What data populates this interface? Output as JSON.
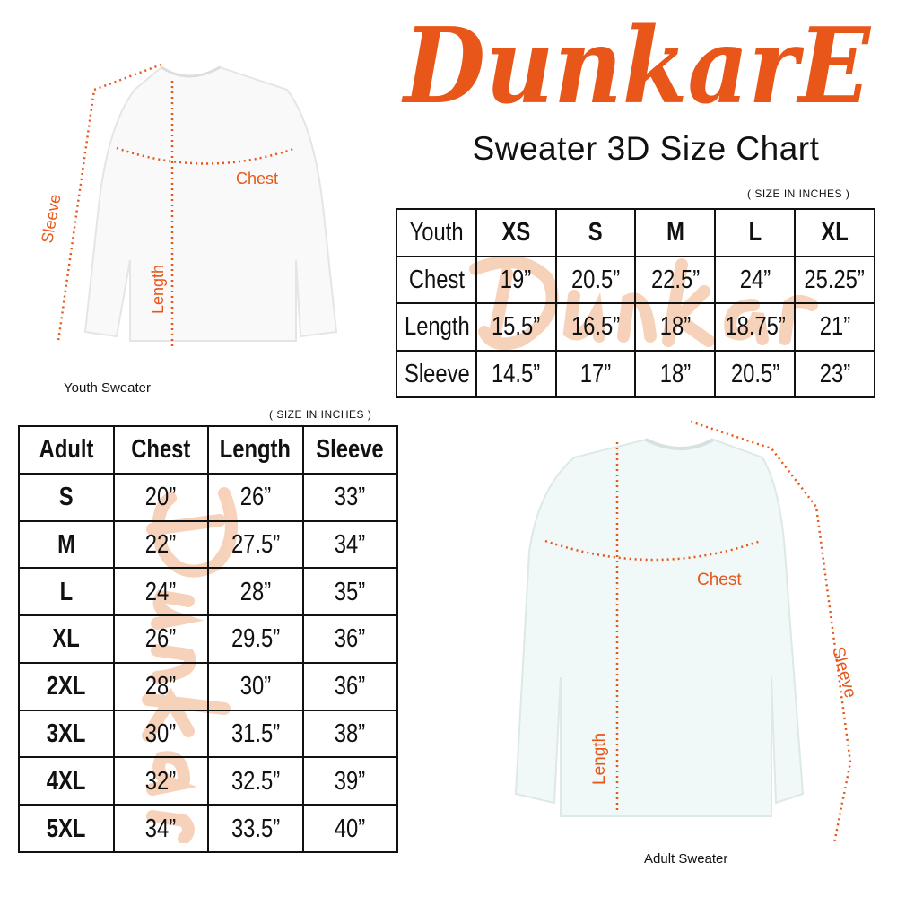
{
  "brand": {
    "logo_text": "DunkarE",
    "color": "#e8561a",
    "watermark_color": "#f6c7a9"
  },
  "title": "Sweater 3D Size Chart",
  "youth": {
    "unit_note": "( SIZE IN INCHES )",
    "caption": "Youth Sweater",
    "labels": {
      "chest": "Chest",
      "length": "Length",
      "sleeve": "Sleeve"
    },
    "header": [
      "Youth",
      "XS",
      "S",
      "M",
      "L",
      "XL"
    ],
    "rows": [
      [
        "Chest",
        "19”",
        "20.5”",
        "22.5”",
        "24”",
        "25.25”"
      ],
      [
        "Length",
        "15.5”",
        "16.5”",
        "18”",
        "18.75”",
        "21”"
      ],
      [
        "Sleeve",
        "14.5”",
        "17”",
        "18”",
        "20.5”",
        "23”"
      ]
    ]
  },
  "adult": {
    "unit_note": "( SIZE IN INCHES )",
    "caption": "Adult Sweater",
    "labels": {
      "chest": "Chest",
      "length": "Length",
      "sleeve": "Sleeve"
    },
    "header": [
      "Adult",
      "Chest",
      "Length",
      "Sleeve"
    ],
    "rows": [
      [
        "S",
        "20”",
        "26”",
        "33”"
      ],
      [
        "M",
        "22”",
        "27.5”",
        "34”"
      ],
      [
        "L",
        "24”",
        "28”",
        "35”"
      ],
      [
        "XL",
        "26”",
        "29.5”",
        "36”"
      ],
      [
        "2XL",
        "28”",
        "30”",
        "36”"
      ],
      [
        "3XL",
        "30”",
        "31.5”",
        "38”"
      ],
      [
        "4XL",
        "32”",
        "32.5”",
        "39”"
      ],
      [
        "5XL",
        "34”",
        "33.5”",
        "40”"
      ]
    ]
  }
}
